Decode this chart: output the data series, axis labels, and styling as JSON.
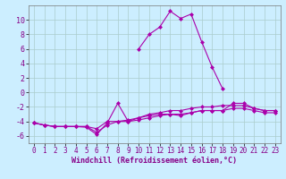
{
  "background_color": "#cceeff",
  "grid_color": "#aacccc",
  "line_color": "#aa00aa",
  "marker_style": "D",
  "marker_size": 2.0,
  "marker_linewidth": 0.5,
  "linewidth": 0.8,
  "xlabel": "Windchill (Refroidissement éolien,°C)",
  "xlabel_fontsize": 6.0,
  "ylabel_fontsize": 6.0,
  "tick_fontsize": 5.5,
  "xlim": [
    -0.5,
    23.5
  ],
  "ylim": [
    -7,
    12
  ],
  "yticks": [
    -6,
    -4,
    -2,
    0,
    2,
    4,
    6,
    8,
    10
  ],
  "xticks": [
    0,
    1,
    2,
    3,
    4,
    5,
    6,
    7,
    8,
    9,
    10,
    11,
    12,
    13,
    14,
    15,
    16,
    17,
    18,
    19,
    20,
    21,
    22,
    23
  ],
  "series": [
    [
      null,
      null,
      null,
      null,
      null,
      null,
      null,
      null,
      null,
      null,
      6.0,
      8.0,
      9.0,
      11.2,
      10.2,
      10.8,
      7.0,
      3.5,
      0.5,
      null,
      null,
      null,
      null,
      null
    ],
    [
      -4.2,
      -4.5,
      -4.7,
      -4.7,
      -4.7,
      -4.8,
      -5.8,
      -4.2,
      -1.5,
      -4.0,
      -3.5,
      -3.2,
      -3.0,
      -3.0,
      -3.2,
      -2.8,
      -2.5,
      -2.5,
      -2.5,
      -1.5,
      -1.5,
      -2.2,
      -2.5,
      -2.5
    ],
    [
      -4.2,
      -4.5,
      -4.7,
      -4.7,
      -4.7,
      -4.7,
      -5.0,
      -4.0,
      -4.0,
      -3.8,
      -3.5,
      -3.0,
      -2.8,
      -2.5,
      -2.5,
      -2.2,
      -2.0,
      -2.0,
      -1.8,
      -1.8,
      -1.8,
      -2.2,
      -2.5,
      -2.5
    ],
    [
      -4.2,
      -4.5,
      -4.7,
      -4.7,
      -4.7,
      -4.7,
      -5.5,
      -4.5,
      -4.0,
      -4.0,
      -3.8,
      -3.5,
      -3.2,
      -3.0,
      -3.0,
      -2.8,
      -2.5,
      -2.5,
      -2.5,
      -2.2,
      -2.2,
      -2.5,
      -2.8,
      -2.8
    ]
  ]
}
